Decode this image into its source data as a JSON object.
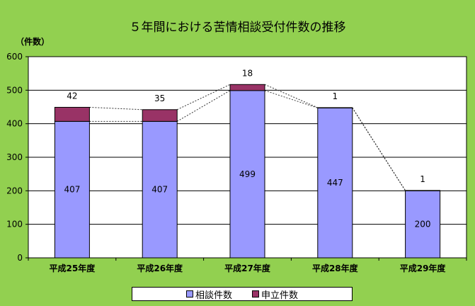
{
  "chart_data": {
    "type": "bar",
    "stacked": true,
    "title": "５年間における苦情相談受付件数の推移",
    "ylabel": "（件数）",
    "ylim": [
      0,
      600
    ],
    "yticks": [
      0,
      100,
      200,
      300,
      400,
      500,
      600
    ],
    "grid": true,
    "legend_position": "bottom",
    "categories": [
      "平成25年度",
      "平成26年度",
      "平成27年度",
      "平成28年度",
      "平成29年度"
    ],
    "series": [
      {
        "name": "相談件数",
        "values": [
          407,
          407,
          499,
          447,
          200
        ],
        "color": "#9999FF"
      },
      {
        "name": "申立件数",
        "values": [
          42,
          35,
          18,
          1,
          1
        ],
        "color": "#993366"
      }
    ]
  }
}
